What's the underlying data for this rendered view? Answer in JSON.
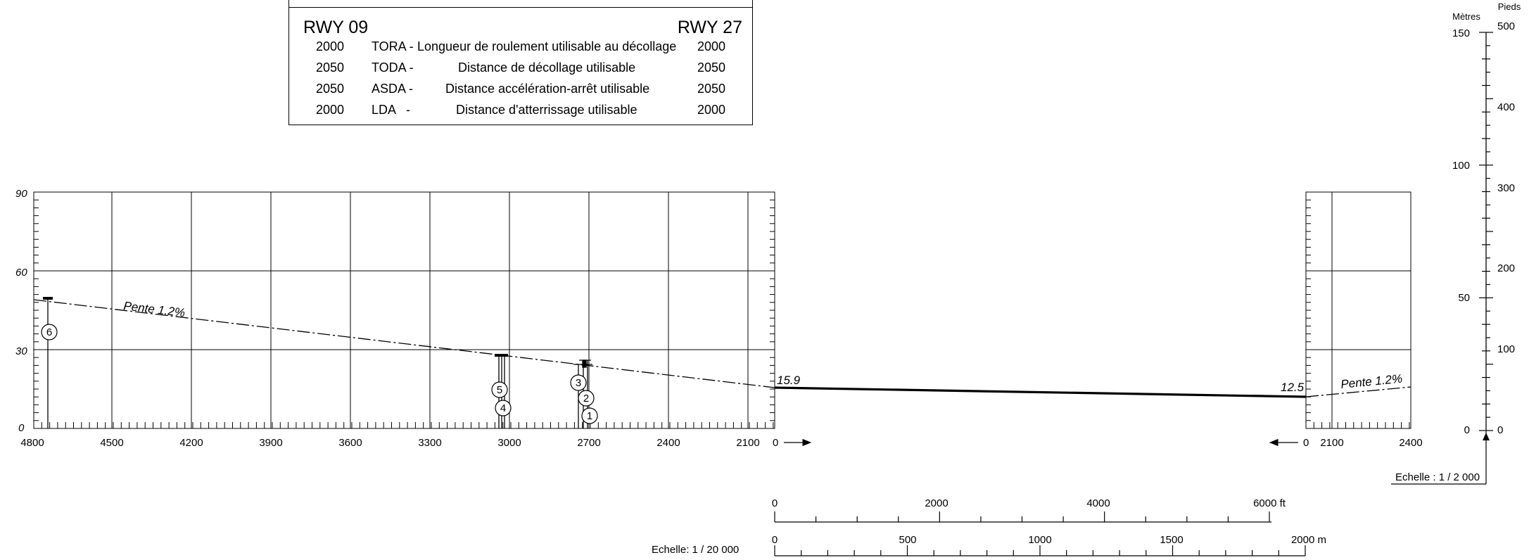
{
  "table": {
    "left_header": "RWY 09",
    "right_header": "RWY 27",
    "rows": [
      {
        "left_value": "2000",
        "code": "TORA -",
        "description": "Longueur de roulement utilisable au décollage",
        "right_value": "2000"
      },
      {
        "left_value": "2050",
        "code": "TODA -",
        "description": "Distance de décollage utilisable",
        "right_value": "2050"
      },
      {
        "left_value": "2050",
        "code": "ASDA -",
        "description": "Distance accélération-arrêt utilisable",
        "right_value": "2050"
      },
      {
        "left_value": "2000",
        "code": "LDA   -",
        "description": "Distance d'atterrissage utilisable",
        "right_value": "2000"
      }
    ]
  },
  "left_panel": {
    "y_ticks": [
      "90",
      "60",
      "30",
      "0"
    ],
    "x_ticks": [
      "4800",
      "4500",
      "4200",
      "3900",
      "3600",
      "3300",
      "3000",
      "2700",
      "2400",
      "2100"
    ],
    "slope_label": "Pente 1.2%",
    "runway_start_label": "0",
    "runway_elevation_label": "15.9"
  },
  "right_panel": {
    "x_ticks": [
      "0",
      "2100",
      "2400"
    ],
    "slope_label": "Pente 1.2%",
    "runway_elevation_label": "12.5"
  },
  "obstacles": [
    {
      "id": "1"
    },
    {
      "id": "2"
    },
    {
      "id": "3"
    },
    {
      "id": "4"
    },
    {
      "id": "5"
    },
    {
      "id": "6"
    }
  ],
  "vertical_scale": {
    "metres_label": "Mètres",
    "feet_label": "Pieds",
    "metres_ticks": [
      "150",
      "100",
      "50",
      "0"
    ],
    "feet_ticks": [
      "500",
      "400",
      "300",
      "200",
      "100",
      "0"
    ],
    "scale_label": "Echelle :  1 / 2 000"
  },
  "horizontal_scale": {
    "feet_ticks": [
      "0",
      "2000",
      "4000",
      "6000 ft"
    ],
    "metre_ticks": [
      "0",
      "500",
      "1000",
      "1500",
      "2000 m"
    ],
    "scale_label": "Echelle: 1 / 20 000"
  }
}
